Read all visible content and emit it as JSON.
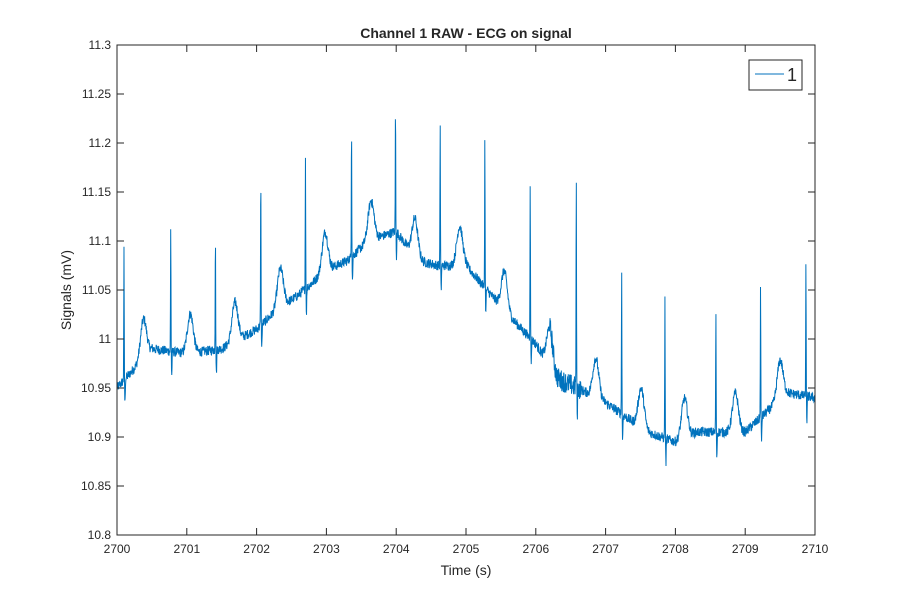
{
  "chart_data": {
    "type": "line",
    "title": "Channel 1 RAW - ECG on signal",
    "xlabel": "Time (s)",
    "ylabel": "Signals (mV)",
    "xlim": [
      2700,
      2710
    ],
    "ylim": [
      10.8,
      11.3
    ],
    "x_ticks": [
      2700,
      2701,
      2702,
      2703,
      2704,
      2705,
      2706,
      2707,
      2708,
      2709,
      2710
    ],
    "y_ticks": [
      "10.8",
      "10.85",
      "10.9",
      "10.95",
      "11",
      "11.05",
      "11.1",
      "11.15",
      "11.2",
      "11.25",
      "11.3"
    ],
    "grid": false,
    "legend": {
      "position": "top-right"
    },
    "baseline": {
      "x": [
        2700.0,
        2700.5,
        2701.0,
        2701.5,
        2702.0,
        2702.3,
        2702.6,
        2703.0,
        2703.3,
        2703.6,
        2704.0,
        2704.3,
        2704.6,
        2705.0,
        2705.3,
        2705.6,
        2706.0,
        2706.3,
        2706.6,
        2707.0,
        2707.3,
        2707.6,
        2708.0,
        2708.3,
        2708.6,
        2709.0,
        2709.3,
        2709.6,
        2710.0
      ],
      "y": [
        10.95,
        10.99,
        10.985,
        10.99,
        11.01,
        11.03,
        11.045,
        11.07,
        11.08,
        11.1,
        11.11,
        11.08,
        11.075,
        11.075,
        11.05,
        11.025,
        10.995,
        10.96,
        10.95,
        10.935,
        10.92,
        10.905,
        10.895,
        10.905,
        10.905,
        10.905,
        10.925,
        10.945,
        10.94
      ]
    },
    "peaks": [
      {
        "x": 2700.1,
        "y": 11.09
      },
      {
        "x": 2700.77,
        "y": 11.115
      },
      {
        "x": 2701.41,
        "y": 11.11
      },
      {
        "x": 2702.06,
        "y": 11.17
      },
      {
        "x": 2702.7,
        "y": 11.185
      },
      {
        "x": 2703.36,
        "y": 11.22
      },
      {
        "x": 2703.99,
        "y": 11.237
      },
      {
        "x": 2704.63,
        "y": 11.22
      },
      {
        "x": 2705.27,
        "y": 11.205
      },
      {
        "x": 2705.92,
        "y": 11.165
      },
      {
        "x": 2706.58,
        "y": 11.165
      },
      {
        "x": 2707.23,
        "y": 11.07
      },
      {
        "x": 2707.85,
        "y": 11.04
      },
      {
        "x": 2708.58,
        "y": 11.03
      },
      {
        "x": 2709.22,
        "y": 11.055
      },
      {
        "x": 2709.87,
        "y": 11.077
      }
    ],
    "series": [
      {
        "name": "1",
        "color": "#0072BD"
      }
    ]
  }
}
